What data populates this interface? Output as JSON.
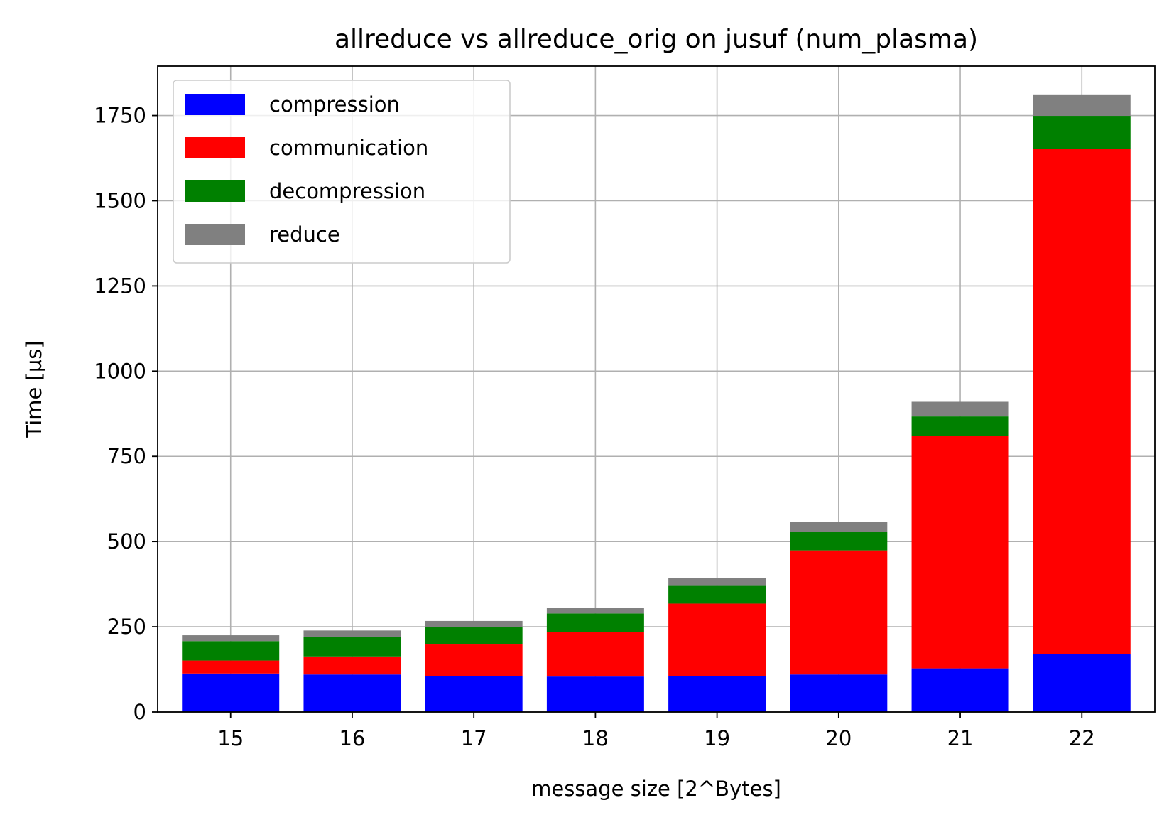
{
  "chart_data": {
    "type": "bar",
    "stacked": true,
    "title": "allreduce vs allreduce_orig on jusuf (num_plasma)",
    "xlabel": "message size [2^Bytes]",
    "ylabel": "Time [µs]",
    "categories": [
      "15",
      "16",
      "17",
      "18",
      "19",
      "20",
      "21",
      "22"
    ],
    "ylim": [
      0,
      1895
    ],
    "yticks": [
      0,
      250,
      500,
      750,
      1000,
      1250,
      1500,
      1750
    ],
    "grid": true,
    "legend_position": "upper-left",
    "series": [
      {
        "name": "compression",
        "color": "#0000ff",
        "values": [
          113,
          110,
          106,
          104,
          106,
          110,
          128,
          170
        ]
      },
      {
        "name": "communication",
        "color": "#ff0000",
        "values": [
          38,
          53,
          92,
          130,
          212,
          364,
          682,
          1482
        ]
      },
      {
        "name": "decompression",
        "color": "#008000",
        "values": [
          57,
          58,
          52,
          55,
          54,
          55,
          57,
          97
        ]
      },
      {
        "name": "reduce",
        "color": "#808080",
        "values": [
          17,
          18,
          17,
          17,
          20,
          29,
          43,
          63
        ]
      }
    ]
  }
}
